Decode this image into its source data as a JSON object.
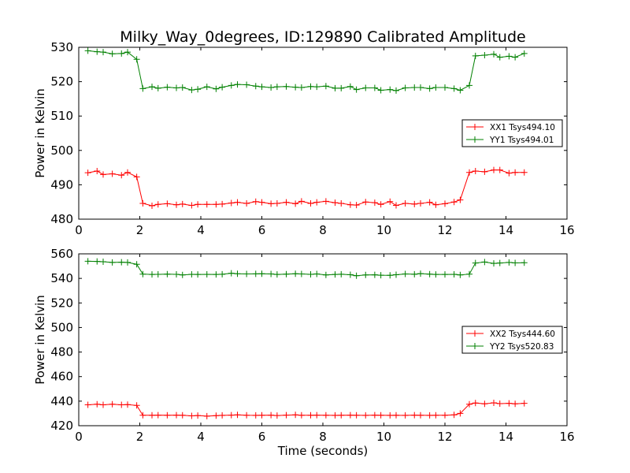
{
  "title": "Milky_Way_0degrees, ID:129890 Calibrated Amplitude",
  "colors": {
    "red": "#ff0000",
    "green": "#008000",
    "axes": "#000000"
  },
  "chart_data": [
    {
      "type": "line",
      "title": "Milky_Way_0degrees, ID:129890 Calibrated Amplitude",
      "xlabel": "",
      "ylabel": "Power in Kelvin",
      "xlim": [
        0,
        16
      ],
      "ylim": [
        480,
        530
      ],
      "xticks": [
        "0",
        "2",
        "4",
        "6",
        "8",
        "10",
        "12",
        "14",
        "16"
      ],
      "yticks": [
        "480",
        "490",
        "500",
        "510",
        "520",
        "530"
      ],
      "grid": false,
      "legend_position": "right",
      "marker": "+",
      "x": [
        0.3,
        0.6,
        0.8,
        1.1,
        1.4,
        1.6,
        1.9,
        2.1,
        2.4,
        2.6,
        2.9,
        3.2,
        3.4,
        3.7,
        3.9,
        4.2,
        4.5,
        4.7,
        5.0,
        5.2,
        5.5,
        5.8,
        6.0,
        6.3,
        6.5,
        6.8,
        7.1,
        7.3,
        7.6,
        7.8,
        8.1,
        8.4,
        8.6,
        8.9,
        9.1,
        9.4,
        9.7,
        9.9,
        10.2,
        10.4,
        10.7,
        11.0,
        11.2,
        11.5,
        11.7,
        12.0,
        12.3,
        12.5,
        12.8,
        13.0,
        13.3,
        13.6,
        13.8,
        14.1,
        14.3,
        14.6
      ],
      "series": [
        {
          "name": "XX1 Tsys494.10",
          "color": "#ff0000",
          "values": [
            493.5,
            494.0,
            493.0,
            493.2,
            492.8,
            493.6,
            492.3,
            484.6,
            483.9,
            484.3,
            484.5,
            484.2,
            484.4,
            484.0,
            484.3,
            484.3,
            484.3,
            484.4,
            484.7,
            484.9,
            484.6,
            485.1,
            484.9,
            484.5,
            484.6,
            484.9,
            484.5,
            485.2,
            484.6,
            484.9,
            485.2,
            484.8,
            484.6,
            484.2,
            484.1,
            485.0,
            484.8,
            484.3,
            485.1,
            484.0,
            484.6,
            484.4,
            484.6,
            484.9,
            484.2,
            484.5,
            485.0,
            485.6,
            493.6,
            494.0,
            493.8,
            494.3,
            494.3,
            493.4,
            493.6,
            493.6
          ]
        },
        {
          "name": "YY1 Tsys494.01",
          "color": "#008000",
          "values": [
            529.0,
            528.7,
            528.6,
            528.1,
            528.2,
            528.6,
            526.5,
            518.0,
            518.5,
            518.1,
            518.4,
            518.2,
            518.3,
            517.6,
            517.8,
            518.5,
            517.9,
            518.4,
            518.9,
            519.2,
            519.1,
            518.7,
            518.5,
            518.3,
            518.5,
            518.6,
            518.4,
            518.3,
            518.6,
            518.5,
            518.7,
            518.1,
            518.1,
            518.6,
            517.7,
            518.2,
            518.2,
            517.5,
            517.7,
            517.4,
            518.2,
            518.3,
            518.3,
            518.0,
            518.3,
            518.3,
            518.0,
            517.5,
            518.9,
            527.5,
            527.7,
            528.0,
            527.1,
            527.4,
            527.1,
            528.2
          ]
        }
      ]
    },
    {
      "type": "line",
      "title": "",
      "xlabel": "Time (seconds)",
      "ylabel": "Power in Kelvin",
      "xlim": [
        0,
        16
      ],
      "ylim": [
        420,
        560
      ],
      "xticks": [
        "0",
        "2",
        "4",
        "6",
        "8",
        "10",
        "12",
        "14",
        "16"
      ],
      "yticks": [
        "420",
        "440",
        "460",
        "480",
        "500",
        "520",
        "540",
        "560"
      ],
      "grid": false,
      "legend_position": "right",
      "marker": "+",
      "x": [
        0.3,
        0.6,
        0.8,
        1.1,
        1.4,
        1.6,
        1.9,
        2.1,
        2.4,
        2.6,
        2.9,
        3.2,
        3.4,
        3.7,
        3.9,
        4.2,
        4.5,
        4.7,
        5.0,
        5.2,
        5.5,
        5.8,
        6.0,
        6.3,
        6.5,
        6.8,
        7.1,
        7.3,
        7.6,
        7.8,
        8.1,
        8.4,
        8.6,
        8.9,
        9.1,
        9.4,
        9.7,
        9.9,
        10.2,
        10.4,
        10.7,
        11.0,
        11.2,
        11.5,
        11.7,
        12.0,
        12.3,
        12.5,
        12.8,
        13.0,
        13.3,
        13.6,
        13.8,
        14.1,
        14.3,
        14.6
      ],
      "series": [
        {
          "name": "XX2 Tsys444.60",
          "color": "#ff0000",
          "values": [
            437.0,
            437.5,
            437.0,
            437.5,
            437.0,
            437.2,
            436.5,
            428.5,
            428.5,
            428.6,
            428.5,
            428.6,
            428.5,
            428.0,
            428.3,
            427.8,
            428.2,
            428.4,
            428.6,
            428.8,
            428.5,
            428.4,
            428.5,
            428.6,
            428.3,
            428.6,
            428.8,
            428.5,
            428.5,
            428.6,
            428.5,
            428.4,
            428.5,
            428.6,
            428.5,
            428.4,
            428.6,
            428.5,
            428.4,
            428.5,
            428.4,
            428.6,
            428.5,
            428.4,
            428.5,
            428.5,
            428.8,
            430.0,
            437.5,
            438.5,
            437.8,
            438.6,
            438.0,
            438.2,
            437.8,
            438.2
          ]
        },
        {
          "name": "YY2 Tsys520.83",
          "color": "#008000",
          "values": [
            554.0,
            553.8,
            553.6,
            553.0,
            553.2,
            553.0,
            551.5,
            543.5,
            543.2,
            543.3,
            543.5,
            543.3,
            542.8,
            543.3,
            543.2,
            543.3,
            543.2,
            543.4,
            544.2,
            543.8,
            543.6,
            543.7,
            543.8,
            543.6,
            543.2,
            543.5,
            543.8,
            543.6,
            543.3,
            543.6,
            542.8,
            543.2,
            543.4,
            543.0,
            542.2,
            542.8,
            542.9,
            542.6,
            542.5,
            543.0,
            543.6,
            543.4,
            543.9,
            543.5,
            543.2,
            543.2,
            543.3,
            542.8,
            543.5,
            552.5,
            553.3,
            552.2,
            552.5,
            553.0,
            552.6,
            552.8
          ]
        }
      ]
    }
  ]
}
